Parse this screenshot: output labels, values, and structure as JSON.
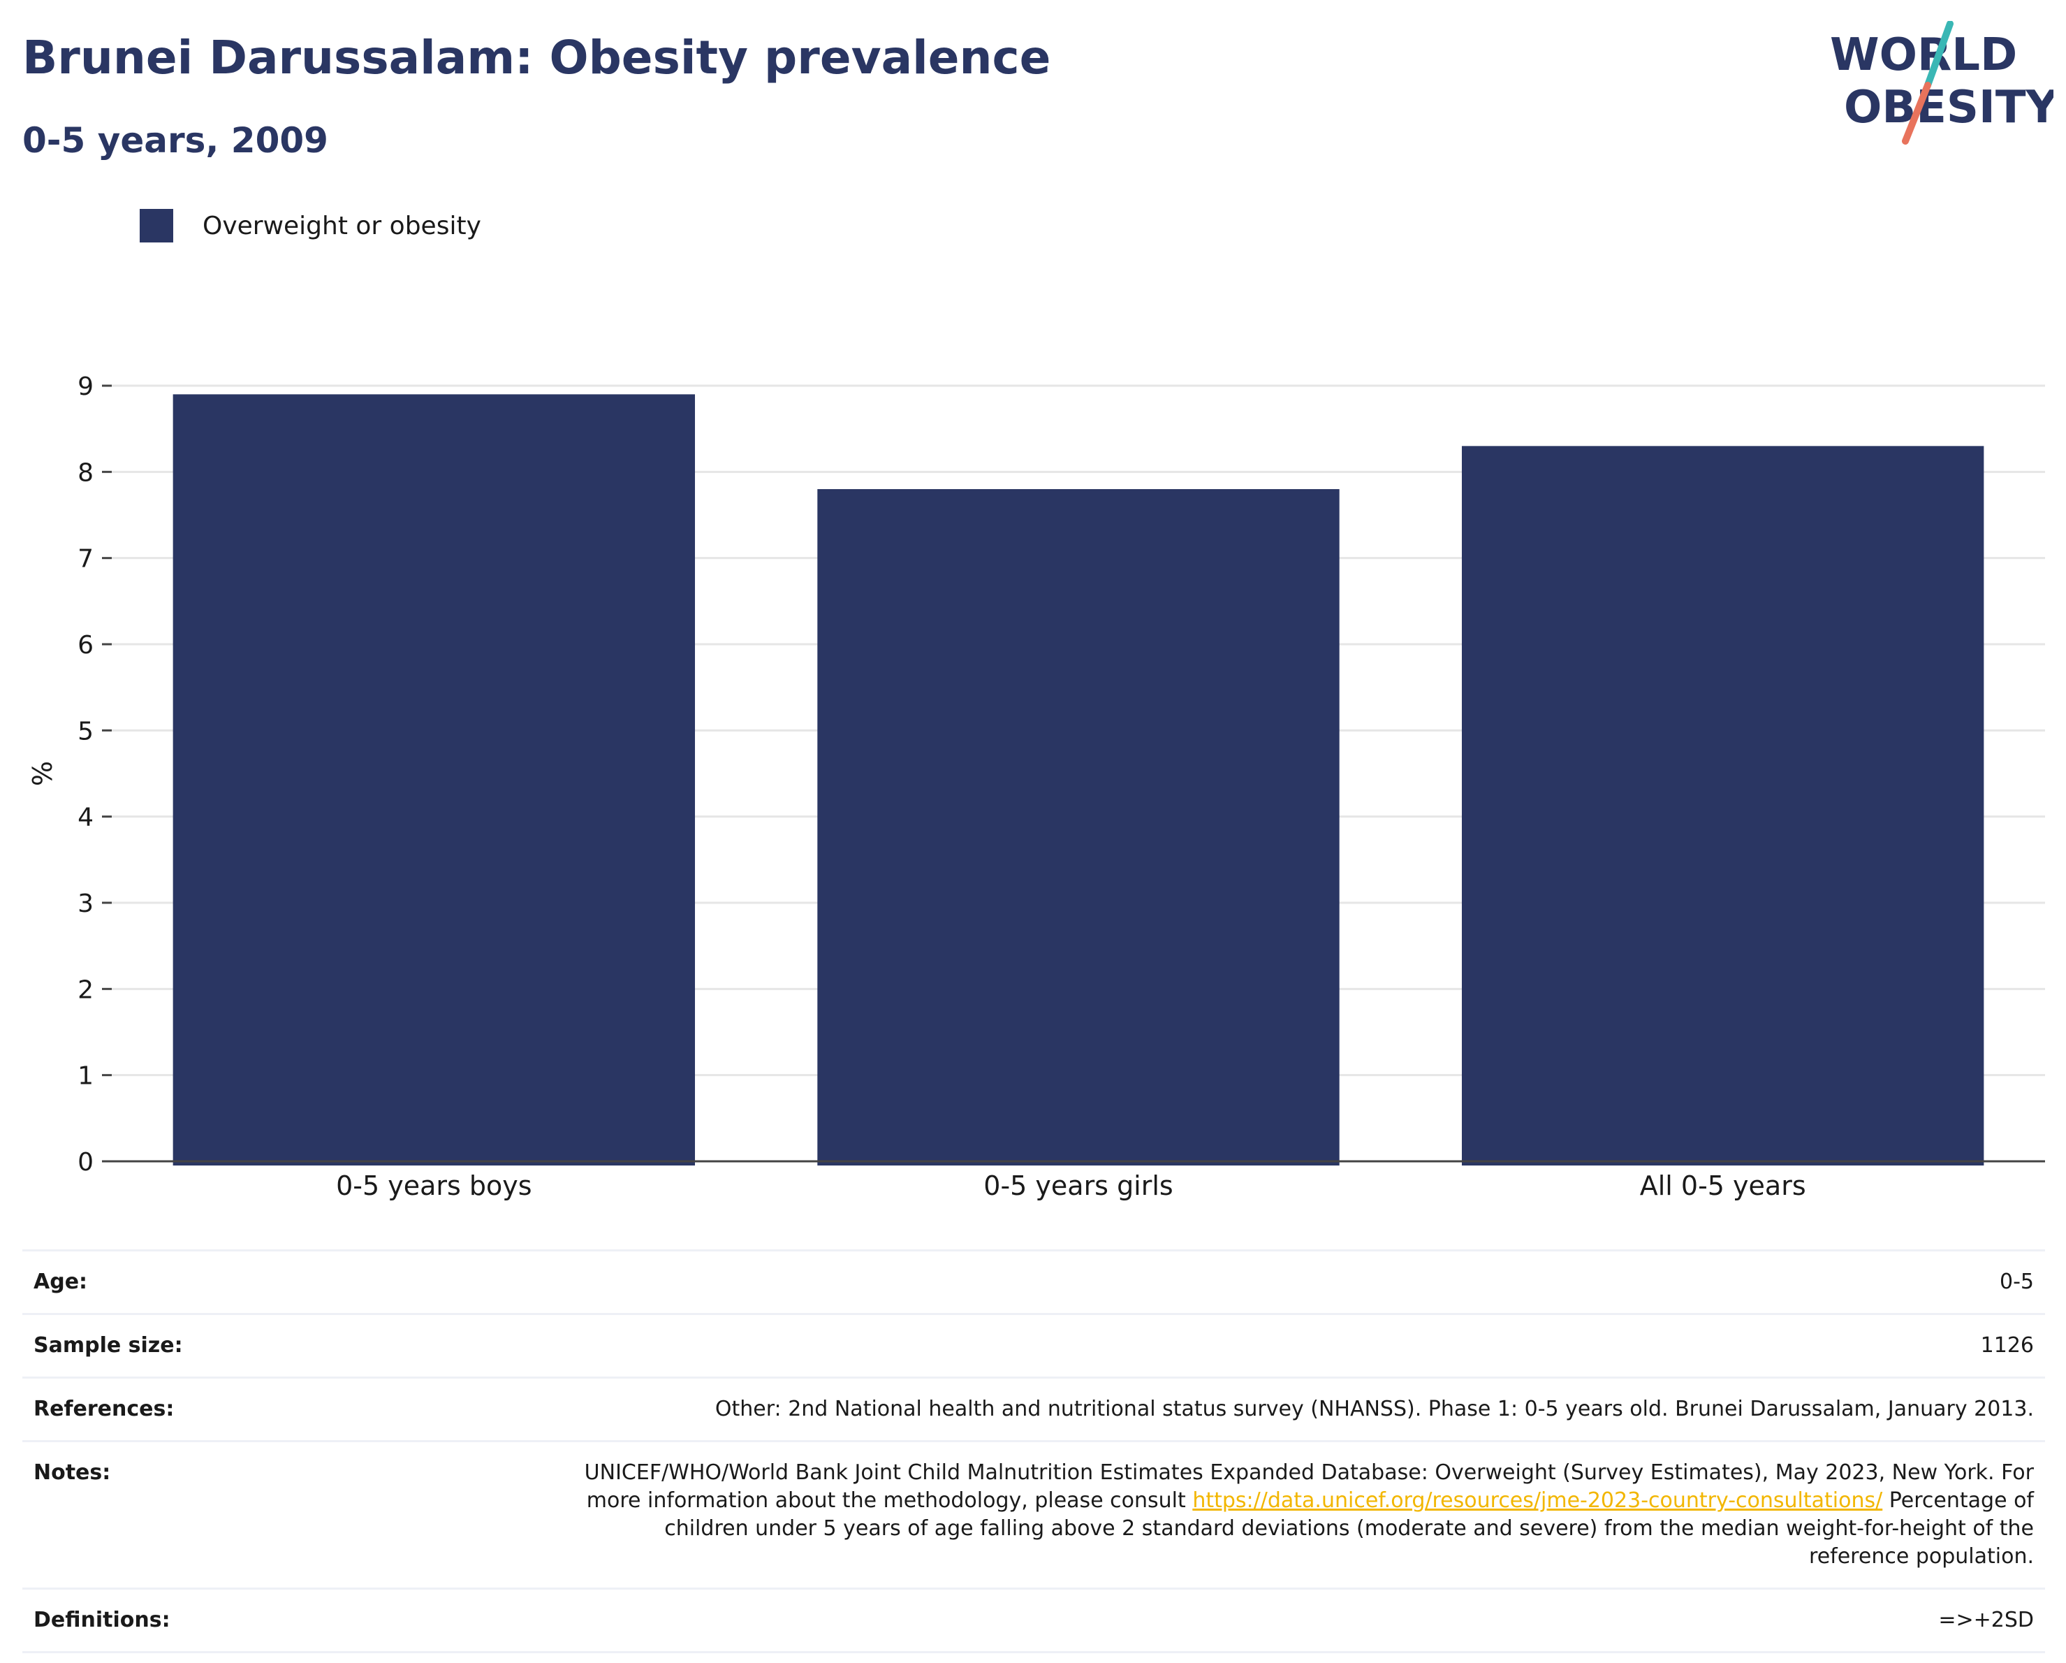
{
  "header": {
    "title": "Brunei Darussalam: Obesity prevalence",
    "subtitle": "0-5 years, 2009"
  },
  "logo": {
    "line1": "WORLD",
    "line2": "OBESITY",
    "text_color": "#2a3663",
    "slash_top_color": "#3ab7b5",
    "slash_bottom_color": "#e8735c"
  },
  "legend": {
    "label": "Overweight or obesity",
    "color": "#2a3663"
  },
  "chart_data": {
    "type": "bar",
    "title": "Brunei Darussalam: Obesity prevalence",
    "subtitle": "0-5 years, 2009",
    "categories": [
      "0-5 years boys",
      "0-5 years girls",
      "All 0-5 years"
    ],
    "series": [
      {
        "name": "Overweight or obesity",
        "values": [
          8.9,
          7.8,
          8.3
        ],
        "color": "#2a3663"
      }
    ],
    "xlabel": "",
    "ylabel": "%",
    "ylim": [
      0,
      9
    ],
    "yticks": [
      0,
      1,
      2,
      3,
      4,
      5,
      6,
      7,
      8,
      9
    ],
    "grid": true,
    "legend_position": "top-left"
  },
  "info": {
    "age_label": "Age:",
    "age_value": "0-5",
    "sample_label": "Sample size:",
    "sample_value": "1126",
    "references_label": "References:",
    "references_value": "Other: 2nd National health and nutritional status survey (NHANSS). Phase 1: 0-5 years old. Brunei Darussalam, January 2013.",
    "notes_label": "Notes:",
    "notes_text_before": "UNICEF/WHO/World Bank Joint Child Malnutrition Estimates Expanded Database: Overweight (Survey Estimates), May 2023, New York. For more information about the methodology, please consult ",
    "notes_link": "https://data.unicef.org/resources/jme-2023-country-consultations/",
    "notes_text_after": " Percentage of children under 5 years of age falling above 2 standard deviations (moderate and severe) from the median weight-for-height of the reference population.",
    "definitions_label": "Definitions:",
    "definitions_value": "=>+2SD"
  }
}
